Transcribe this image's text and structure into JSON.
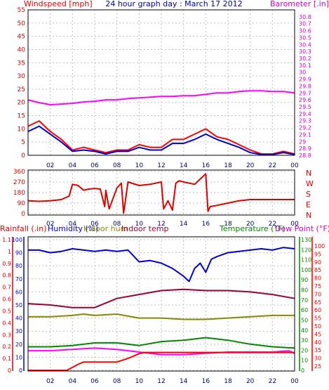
{
  "chart_data": [
    {
      "type": "line",
      "title": "24 hour graph day : March 17 2012",
      "left_axis_label": "Windspeed [mph]",
      "right_axis_label": "Barometer [.in]",
      "x_ticks": [
        "02",
        "04",
        "06",
        "08",
        "10",
        "12",
        "14",
        "16",
        "18",
        "20",
        "22",
        "00"
      ],
      "left_ticks": [
        "0",
        "5",
        "10",
        "15",
        "20",
        "25",
        "30",
        "35",
        "40",
        "45",
        "50",
        "55"
      ],
      "ylim_left": [
        0,
        55
      ],
      "right_ticks": [
        "28.8",
        "28.9",
        "29",
        "29.1",
        "29.2",
        "29.3",
        "29.4",
        "29.5",
        "29.6",
        "29.7",
        "29.8",
        "29.9",
        "30",
        "30.1",
        "30.2",
        "30.3",
        "30.4",
        "30.5",
        "30.6",
        "30.7",
        "30.8"
      ],
      "ylim_right": [
        28.8,
        30.9
      ],
      "series": [
        {
          "axis": "left",
          "color": "#ff0000",
          "x": [
            0,
            1,
            2,
            3,
            4,
            5,
            6,
            7,
            8,
            9,
            10,
            11,
            12,
            13,
            14,
            15,
            16,
            17,
            18,
            19,
            20,
            21,
            22,
            23,
            24
          ],
          "values": [
            11,
            13,
            9,
            6,
            2,
            3,
            2,
            1,
            2,
            2,
            4,
            3,
            3,
            6,
            6,
            8,
            10,
            7,
            6,
            4,
            2,
            0.5,
            0.5,
            1.5,
            0.5
          ]
        },
        {
          "axis": "left",
          "color": "#0000cc",
          "x": [
            0,
            1,
            2,
            3,
            4,
            5,
            6,
            7,
            8,
            9,
            10,
            11,
            12,
            13,
            14,
            15,
            16,
            17,
            18,
            19,
            20,
            21,
            22,
            23,
            24
          ],
          "values": [
            9,
            11,
            8,
            5,
            1.5,
            2,
            1.5,
            0.5,
            1.5,
            1.5,
            3,
            2,
            2,
            4.5,
            4.5,
            6,
            8,
            6,
            4.5,
            3,
            1,
            0.3,
            0.3,
            1,
            0.3
          ]
        },
        {
          "axis": "right",
          "color": "#ff00ff",
          "x": [
            0,
            1,
            2,
            3,
            4,
            5,
            6,
            7,
            8,
            9,
            10,
            11,
            12,
            13,
            14,
            15,
            16,
            17,
            18,
            19,
            20,
            21,
            22,
            23,
            24
          ],
          "values": [
            29.6,
            29.56,
            29.53,
            29.54,
            29.55,
            29.57,
            29.58,
            29.6,
            29.6,
            29.62,
            29.63,
            29.64,
            29.65,
            29.65,
            29.66,
            29.66,
            29.68,
            29.7,
            29.7,
            29.72,
            29.73,
            29.73,
            29.72,
            29.72,
            29.7
          ]
        }
      ]
    },
    {
      "type": "line",
      "left_ticks": [
        "0",
        "90",
        "180",
        "270",
        "360"
      ],
      "ylim": [
        0,
        360
      ],
      "right_labels": [
        "N",
        "W",
        "S",
        "E",
        "N"
      ],
      "x_ticks": [
        "02",
        "04",
        "06",
        "08",
        "10",
        "12",
        "14",
        "16",
        "18",
        "20",
        "22",
        "00"
      ],
      "series": [
        {
          "color": "#dd0000",
          "x": [
            0,
            1,
            2,
            3,
            3.7,
            4,
            4.5,
            5,
            5.5,
            6,
            6.5,
            6.9,
            7,
            7.3,
            8,
            8.4,
            8.6,
            9,
            9.5,
            10,
            11,
            12,
            12.2,
            12.6,
            13,
            13.3,
            13.6,
            14,
            15,
            16,
            16.2,
            16.4,
            17,
            18,
            19,
            20,
            22,
            24
          ],
          "values": [
            110,
            105,
            110,
            120,
            150,
            250,
            240,
            200,
            210,
            215,
            210,
            60,
            200,
            40,
            220,
            260,
            5,
            270,
            255,
            240,
            250,
            270,
            40,
            110,
            30,
            260,
            280,
            270,
            250,
            340,
            20,
            60,
            70,
            90,
            110,
            120,
            120,
            120
          ]
        }
      ]
    },
    {
      "type": "line",
      "left_axis_labels": [
        "Rainfall (.in)",
        "Humidity (%)",
        "Indoor hum",
        "Indoor temp"
      ],
      "right_axis_labels": [
        "Temperature (°F)",
        "Dew Point (°F)"
      ],
      "x_ticks": [
        "02",
        "04",
        "06",
        "08",
        "10",
        "12",
        "14",
        "16",
        "18",
        "20",
        "22",
        "00"
      ],
      "humidity_ticks": [
        "0",
        "10",
        "20",
        "30",
        "40",
        "50",
        "60",
        "70",
        "80",
        "90",
        "100"
      ],
      "rain_ticks": [
        "0",
        "0.1",
        "0.2",
        "0.3",
        "0.4",
        "0.5",
        "0.6",
        "0.7",
        "0.8",
        "0.9",
        "1",
        "1.1"
      ],
      "temperature_ticks": [
        "0",
        "10",
        "20",
        "30",
        "40",
        "50",
        "60",
        "70",
        "80",
        "90",
        "100",
        "110",
        "120",
        "130"
      ],
      "dewpoint_ticks": [
        "25",
        "30",
        "35",
        "40",
        "45",
        "50",
        "55",
        "60",
        "65",
        "70",
        "75",
        "80",
        "85",
        "90",
        "95",
        "100"
      ],
      "ylim_humidity": [
        0,
        100
      ],
      "series": [
        {
          "name": "Humidity (%)",
          "axis": "humidity",
          "color": "#0000cc",
          "x": [
            0,
            1,
            2,
            3,
            4,
            5,
            6,
            7,
            8,
            9,
            10,
            11,
            12,
            13,
            14,
            14.5,
            15,
            15.5,
            16,
            16.5,
            17,
            18,
            19,
            20,
            21,
            22,
            23,
            24
          ],
          "values": [
            92,
            92,
            90,
            91,
            93,
            92,
            91,
            92,
            91,
            92,
            83,
            84,
            82,
            78,
            72,
            68,
            78,
            82,
            75,
            85,
            87,
            90,
            91,
            92,
            93,
            92,
            94,
            93
          ]
        },
        {
          "name": "Indoor temp",
          "axis": "humidity",
          "color": "#990033",
          "x": [
            0,
            2,
            4,
            5,
            6,
            8,
            10,
            12,
            14,
            16,
            18,
            20,
            22,
            24
          ],
          "values": [
            51,
            50,
            48,
            48,
            48,
            55,
            58,
            61,
            62,
            61,
            61,
            60,
            58,
            55
          ]
        },
        {
          "name": "Indoor hum",
          "axis": "humidity",
          "color": "#888800",
          "x": [
            0,
            2,
            4,
            5,
            6,
            8,
            10,
            12,
            14,
            16,
            18,
            20,
            22,
            24
          ],
          "values": [
            41,
            41,
            42,
            43,
            42,
            43,
            40,
            40,
            39,
            39,
            40,
            41,
            42,
            42
          ]
        },
        {
          "name": "Temperature (°F)",
          "axis": "humidity",
          "color": "#008800",
          "x": [
            0,
            2,
            4,
            6,
            8,
            10,
            12,
            14,
            16,
            18,
            20,
            22,
            24
          ],
          "values": [
            18,
            18,
            19,
            21,
            21,
            19,
            22,
            23,
            25,
            23,
            20,
            18,
            17
          ]
        },
        {
          "name": "Dew Point (°F)",
          "axis": "humidity",
          "color": "#ff00ff",
          "x": [
            0,
            2,
            4,
            6,
            8,
            10,
            12,
            14,
            16,
            18,
            20,
            22,
            23.5,
            24
          ],
          "values": [
            15,
            15,
            16,
            17,
            16,
            14,
            12,
            12,
            13,
            14,
            14,
            14,
            15,
            13
          ]
        },
        {
          "name": "Rainfall (.in)",
          "axis": "rain",
          "color": "#ff0000",
          "x": [
            0,
            3.5,
            4.5,
            5,
            7,
            8,
            9,
            10,
            10.5,
            11,
            12,
            14,
            16,
            18,
            20,
            22,
            24
          ],
          "values": [
            0,
            0,
            0.05,
            0.07,
            0.07,
            0.07,
            0.1,
            0.14,
            0.15,
            0.15,
            0.15,
            0.15,
            0.15,
            0.15,
            0.15,
            0.15,
            0.15
          ]
        }
      ]
    }
  ]
}
